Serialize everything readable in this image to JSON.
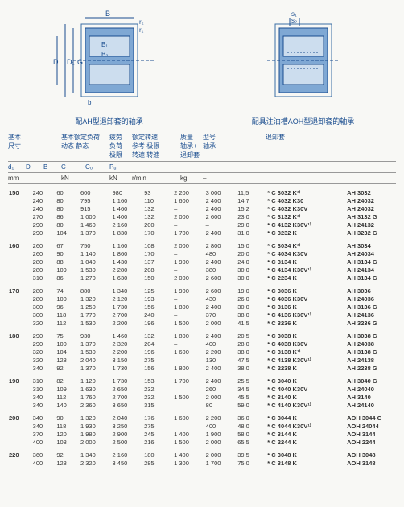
{
  "captions": {
    "left": "配AH型退卸套的轴承",
    "right": "配具注油槽AOH型退卸套的轴承"
  },
  "header_groups": {
    "basic_dim": "基本\n尺寸",
    "basic_load": "基本额定负荷\n动态      静态",
    "fatigue": "疲劳\n负荷\n极限",
    "speed": "额定转速\n参考      极限\n转速      转速",
    "mass": "质量\n轴承+\n退卸套",
    "desig": "型号\n轴承",
    "with": "退卸套"
  },
  "subheaders": {
    "d1": "d₁",
    "D": "D",
    "B": "B",
    "C": "C",
    "C0": "C₀",
    "Pu": "Pᵤ"
  },
  "units": {
    "mm": "mm",
    "kN": "kN",
    "kN2": "kN",
    "rmin": "r/min",
    "kg": "kg",
    "dash": "–"
  },
  "groups": [
    {
      "d1": "150",
      "rows": [
        {
          "D": "240",
          "B": "60",
          "C": "600",
          "C0": "980",
          "Pu": "93",
          "r1": "2 200",
          "r2": "3 000",
          "m": "11,5",
          "bear": "* C 3032 K¹⁾",
          "with": "AH 3032"
        },
        {
          "D": "240",
          "B": "80",
          "C": "795",
          "C0": "1 160",
          "Pu": "110",
          "r1": "1 600",
          "r2": "2 400",
          "m": "14,7",
          "bear": "* C 4032 K30",
          "with": "AH 24032"
        },
        {
          "D": "240",
          "B": "80",
          "C": "915",
          "C0": "1 460",
          "Pu": "132",
          "r1": "–",
          "r2": "2 400",
          "m": "15,2",
          "bear": "* C 4032 K30V",
          "with": "AH 24032"
        },
        {
          "D": "270",
          "B": "86",
          "C": "1 000",
          "C0": "1 400",
          "Pu": "132",
          "r1": "2 000",
          "r2": "2 600",
          "m": "23,0",
          "bear": "* C 3132 K¹⁾",
          "with": "AH 3132 G"
        },
        {
          "D": "290",
          "B": "80",
          "C": "1 460",
          "C0": "2 160",
          "Pu": "200",
          "r1": "–",
          "r2": "–",
          "m": "29,0",
          "bear": "* C 4132 K30V¹⁾",
          "with": "AH 24132"
        },
        {
          "D": "290",
          "B": "104",
          "C": "1 370",
          "C0": "1 830",
          "Pu": "170",
          "r1": "1 700",
          "r2": "2 400",
          "m": "31,0",
          "bear": "* C 3232 K",
          "with": "AH 3232 G"
        }
      ]
    },
    {
      "d1": "160",
      "rows": [
        {
          "D": "260",
          "B": "67",
          "C": "750",
          "C0": "1 160",
          "Pu": "108",
          "r1": "2 000",
          "r2": "2 800",
          "m": "15,0",
          "bear": "* C 3034 K¹⁾",
          "with": "AH 3034"
        },
        {
          "D": "260",
          "B": "90",
          "C": "1 140",
          "C0": "1 860",
          "Pu": "170",
          "r1": "–",
          "r2": "480",
          "m": "20,0",
          "bear": "* C 4034 K30V",
          "with": "AH 24034"
        },
        {
          "D": "280",
          "B": "88",
          "C": "1 040",
          "C0": "1 430",
          "Pu": "137",
          "r1": "1 900",
          "r2": "2 400",
          "m": "24,0",
          "bear": "* C 3134 K",
          "with": "AH 3134 G"
        },
        {
          "D": "280",
          "B": "109",
          "C": "1 530",
          "C0": "2 280",
          "Pu": "208",
          "r1": "–",
          "r2": "380",
          "m": "30,0",
          "bear": "* C 4134 K30V¹⁾",
          "with": "AH 24134"
        },
        {
          "D": "310",
          "B": "86",
          "C": "1 270",
          "C0": "1 630",
          "Pu": "150",
          "r1": "2 000",
          "r2": "2 600",
          "m": "30,0",
          "bear": "* C 2234 K",
          "with": "AH 3134 G"
        }
      ]
    },
    {
      "d1": "170",
      "rows": [
        {
          "D": "280",
          "B": "74",
          "C": "880",
          "C0": "1 340",
          "Pu": "125",
          "r1": "1 900",
          "r2": "2 600",
          "m": "19,0",
          "bear": "* C 3036 K",
          "with": "AH 3036"
        },
        {
          "D": "280",
          "B": "100",
          "C": "1 320",
          "C0": "2 120",
          "Pu": "193",
          "r1": "–",
          "r2": "430",
          "m": "26,0",
          "bear": "* C 4036 K30V",
          "with": "AH 24036"
        },
        {
          "D": "300",
          "B": "96",
          "C": "1 250",
          "C0": "1 730",
          "Pu": "156",
          "r1": "1 800",
          "r2": "2 400",
          "m": "30,0",
          "bear": "* C 3136 K",
          "with": "AH 3136 G"
        },
        {
          "D": "300",
          "B": "118",
          "C": "1 770",
          "C0": "2 700",
          "Pu": "240",
          "r1": "–",
          "r2": "370",
          "m": "38,0",
          "bear": "* C 4136 K30V¹⁾",
          "with": "AH 24136"
        },
        {
          "D": "320",
          "B": "112",
          "C": "1 530",
          "C0": "2 200",
          "Pu": "196",
          "r1": "1 500",
          "r2": "2 000",
          "m": "41,5",
          "bear": "* C 3236 K",
          "with": "AH 3236 G"
        }
      ]
    },
    {
      "d1": "180",
      "rows": [
        {
          "D": "290",
          "B": "75",
          "C": "930",
          "C0": "1 460",
          "Pu": "132",
          "r1": "1 800",
          "r2": "2 400",
          "m": "20,5",
          "bear": "* C 3038 K",
          "with": "AH 3038 G"
        },
        {
          "D": "290",
          "B": "100",
          "C": "1 370",
          "C0": "2 320",
          "Pu": "204",
          "r1": "–",
          "r2": "400",
          "m": "28,0",
          "bear": "* C 4038 K30V",
          "with": "AH 24038"
        },
        {
          "D": "320",
          "B": "104",
          "C": "1 530",
          "C0": "2 200",
          "Pu": "196",
          "r1": "1 600",
          "r2": "2 200",
          "m": "38,0",
          "bear": "* C 3138 K¹⁾",
          "with": "AH 3138 G"
        },
        {
          "D": "320",
          "B": "128",
          "C": "2 040",
          "C0": "3 150",
          "Pu": "275",
          "r1": "–",
          "r2": "130",
          "m": "47,5",
          "bear": "* C 4138 K30V¹⁾",
          "with": "AH 24138"
        },
        {
          "D": "340",
          "B": "92",
          "C": "1 370",
          "C0": "1 730",
          "Pu": "156",
          "r1": "1 800",
          "r2": "2 400",
          "m": "38,0",
          "bear": "* C 2238 K",
          "with": "AH 2238 G"
        }
      ]
    },
    {
      "d1": "190",
      "rows": [
        {
          "D": "310",
          "B": "82",
          "C": "1 120",
          "C0": "1 730",
          "Pu": "153",
          "r1": "1 700",
          "r2": "2 400",
          "m": "25,5",
          "bear": "* C 3040 K",
          "with": "AH 3040 G"
        },
        {
          "D": "310",
          "B": "109",
          "C": "1 630",
          "C0": "2 650",
          "Pu": "232",
          "r1": "–",
          "r2": "260",
          "m": "34,5",
          "bear": "* C 4040 K30V",
          "with": "AH 24040"
        },
        {
          "D": "340",
          "B": "112",
          "C": "1 760",
          "C0": "2 700",
          "Pu": "232",
          "r1": "1 500",
          "r2": "2 000",
          "m": "45,5",
          "bear": "* C 3140 K",
          "with": "AH 3140"
        },
        {
          "D": "340",
          "B": "140",
          "C": "2 360",
          "C0": "3 650",
          "Pu": "315",
          "r1": "–",
          "r2": "80",
          "m": "59,0",
          "bear": "* C 4140 K30V¹⁾",
          "with": "AH 24140"
        }
      ]
    },
    {
      "d1": "200",
      "rows": [
        {
          "D": "340",
          "B": "90",
          "C": "1 320",
          "C0": "2 040",
          "Pu": "176",
          "r1": "1 600",
          "r2": "2 200",
          "m": "36,0",
          "bear": "* C 3044 K",
          "with": "AOH 3044 G"
        },
        {
          "D": "340",
          "B": "118",
          "C": "1 930",
          "C0": "3 250",
          "Pu": "275",
          "r1": "–",
          "r2": "400",
          "m": "48,0",
          "bear": "* C 4044 K30V¹⁾",
          "with": "AOH 24044"
        },
        {
          "D": "370",
          "B": "120",
          "C": "1 980",
          "C0": "2 900",
          "Pu": "245",
          "r1": "1 400",
          "r2": "1 900",
          "m": "58,0",
          "bear": "* C 3144 K",
          "with": "AOH 3144"
        },
        {
          "D": "400",
          "B": "108",
          "C": "2 000",
          "C0": "2 500",
          "Pu": "216",
          "r1": "1 500",
          "r2": "2 000",
          "m": "65,5",
          "bear": "* C 2244 K",
          "with": "AOH 2244"
        }
      ]
    },
    {
      "d1": "220",
      "rows": [
        {
          "D": "360",
          "B": "92",
          "C": "1 340",
          "C0": "2 160",
          "Pu": "180",
          "r1": "1 400",
          "r2": "2 000",
          "m": "39,5",
          "bear": "* C 3048 K",
          "with": "AOH 3048"
        },
        {
          "D": "400",
          "B": "128",
          "C": "2 320",
          "C0": "3 450",
          "Pu": "285",
          "r1": "1 300",
          "r2": "1 700",
          "m": "75,0",
          "bear": "* C 3148 K",
          "with": "AOH 3148"
        }
      ]
    }
  ]
}
